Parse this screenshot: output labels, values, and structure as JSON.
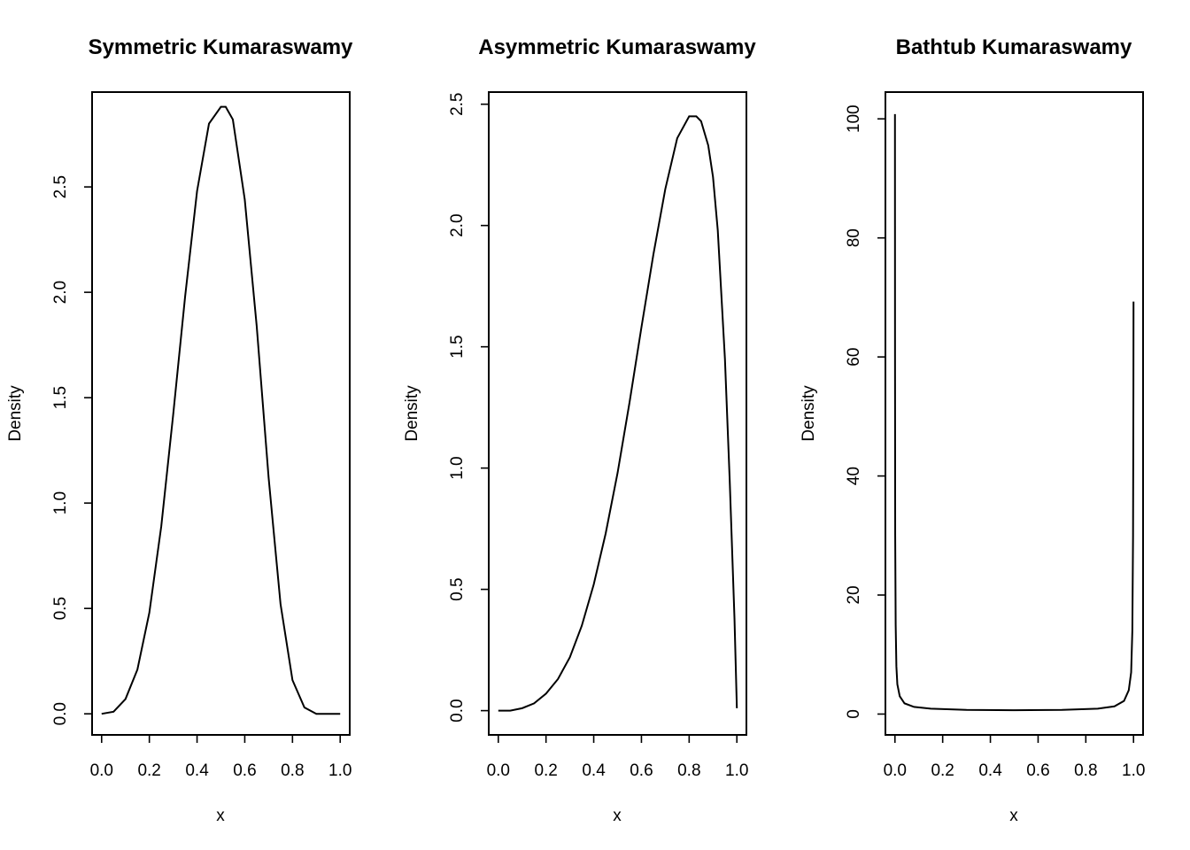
{
  "chart_data": [
    {
      "type": "line",
      "title": "Symmetric Kumaraswamy",
      "xlabel": "x",
      "ylabel": "Density",
      "xlim": [
        0,
        1
      ],
      "ylim": [
        -0.1,
        2.95
      ],
      "xticks": [
        "0.0",
        "0.2",
        "0.4",
        "0.6",
        "0.8",
        "1.0"
      ],
      "yticks": [
        "0.0",
        "0.5",
        "1.0",
        "1.5",
        "2.0",
        "2.5"
      ],
      "x": [
        0,
        0.05,
        0.1,
        0.15,
        0.2,
        0.25,
        0.3,
        0.35,
        0.4,
        0.45,
        0.5,
        0.52,
        0.55,
        0.6,
        0.65,
        0.7,
        0.75,
        0.8,
        0.85,
        0.9,
        0.95,
        1.0
      ],
      "y": [
        0,
        0.01,
        0.07,
        0.21,
        0.48,
        0.89,
        1.42,
        1.98,
        2.48,
        2.8,
        2.88,
        2.88,
        2.82,
        2.44,
        1.84,
        1.12,
        0.52,
        0.16,
        0.03,
        0.0,
        0.0,
        0.0
      ]
    },
    {
      "type": "line",
      "title": "Asymmetric Kumaraswamy",
      "xlabel": "x",
      "ylabel": "Density",
      "xlim": [
        0,
        1
      ],
      "ylim": [
        -0.1,
        2.55
      ],
      "xticks": [
        "0.0",
        "0.2",
        "0.4",
        "0.6",
        "0.8",
        "1.0"
      ],
      "yticks": [
        "0.0",
        "0.5",
        "1.0",
        "1.5",
        "2.0",
        "2.5"
      ],
      "x": [
        0,
        0.05,
        0.1,
        0.15,
        0.2,
        0.25,
        0.3,
        0.35,
        0.4,
        0.45,
        0.5,
        0.55,
        0.6,
        0.65,
        0.7,
        0.75,
        0.8,
        0.83,
        0.85,
        0.88,
        0.9,
        0.92,
        0.95,
        0.97,
        0.99,
        1.0
      ],
      "y": [
        0,
        0.0,
        0.01,
        0.03,
        0.07,
        0.13,
        0.22,
        0.35,
        0.52,
        0.73,
        0.98,
        1.27,
        1.58,
        1.88,
        2.15,
        2.36,
        2.45,
        2.45,
        2.43,
        2.33,
        2.2,
        1.98,
        1.45,
        0.95,
        0.38,
        0.01
      ]
    },
    {
      "type": "line",
      "title": "Bathtub Kumaraswamy",
      "xlabel": "x",
      "ylabel": "Density",
      "xlim": [
        0,
        1
      ],
      "ylim": [
        -3.5,
        104.5
      ],
      "xticks": [
        "0.0",
        "0.2",
        "0.4",
        "0.6",
        "0.8",
        "1.0"
      ],
      "yticks": [
        "0",
        "20",
        "40",
        "60",
        "80",
        "100"
      ],
      "x": [
        0,
        0.0003,
        0.001,
        0.003,
        0.006,
        0.01,
        0.02,
        0.04,
        0.08,
        0.15,
        0.3,
        0.5,
        0.7,
        0.85,
        0.92,
        0.96,
        0.98,
        0.99,
        0.995,
        0.998,
        0.9995,
        1.0
      ],
      "y": [
        100.8,
        60,
        30,
        15,
        8,
        5,
        3,
        1.8,
        1.2,
        0.9,
        0.7,
        0.65,
        0.7,
        0.9,
        1.3,
        2.2,
        4,
        7,
        14,
        30,
        55,
        69.3
      ]
    }
  ]
}
